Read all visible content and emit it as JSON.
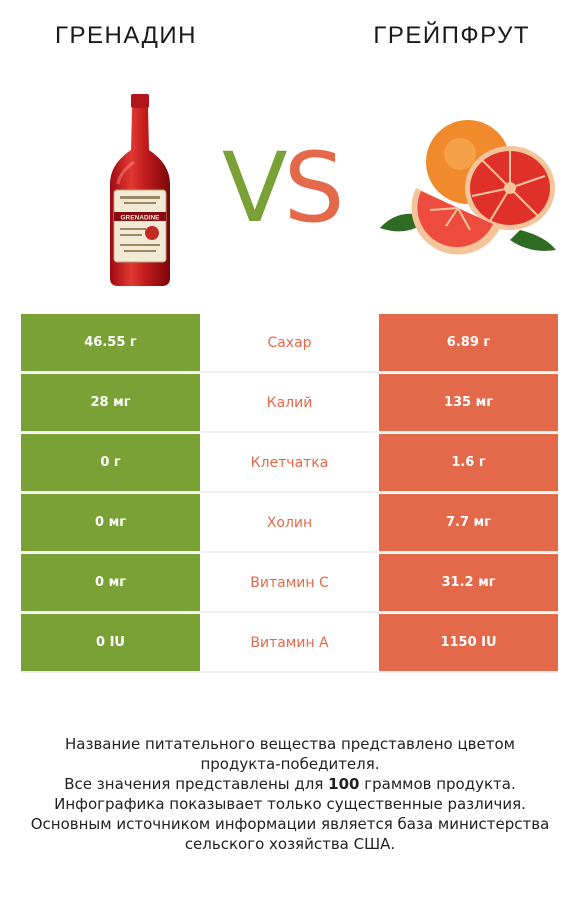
{
  "header": {
    "left_title": "ГРЕНАДИН",
    "right_title": "ГРЕЙПФРУТ",
    "vs_v": "V",
    "vs_s": "S"
  },
  "bottle_label": "GRENADINE",
  "rows": [
    {
      "left": "46.55 г",
      "nutrient": "Сахар",
      "right": "6.89 г"
    },
    {
      "left": "28 мг",
      "nutrient": "Калий",
      "right": "135 мг"
    },
    {
      "left": "0 г",
      "nutrient": "Клетчатка",
      "right": "1.6 г"
    },
    {
      "left": "0 мг",
      "nutrient": "Холин",
      "right": "7.7 мг"
    },
    {
      "left": "0 мг",
      "nutrient": "Витамин C",
      "right": "31.2 мг"
    },
    {
      "left": "0 IU",
      "nutrient": "Витамин A",
      "right": "1150 IU"
    }
  ],
  "colors": {
    "left": "#7aa136",
    "right": "#e4694a"
  },
  "footer": {
    "line1": "Название питательного вещества представлено цветом",
    "line2": "продукта-победителя.",
    "line3_pre": "Все значения представлены для ",
    "line3_bold": "100",
    "line3_post": " граммов продукта.",
    "line4": "Инфографика показывает только существенные различия.",
    "line5": "Основным источником информации является база министерства",
    "line6": "сельского хозяйства США."
  }
}
